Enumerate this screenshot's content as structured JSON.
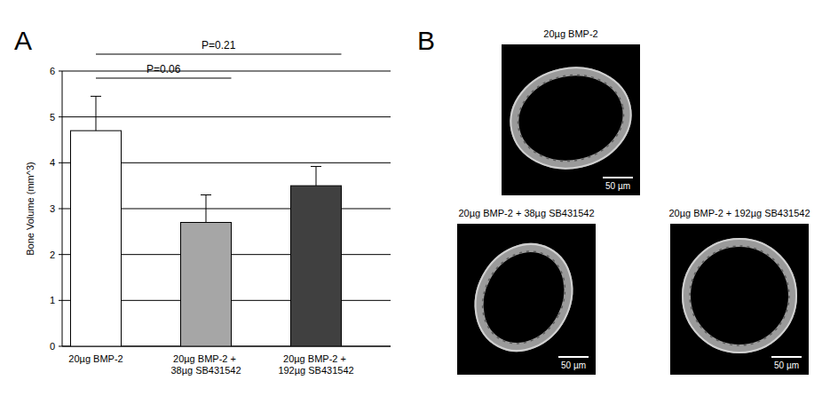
{
  "panel_labels": [
    "A",
    "B"
  ],
  "chart_data": {
    "type": "bar",
    "y_label": "Bone Volume (mm^3)",
    "categories": [
      "20µg BMP-2",
      "20µg BMP-2 + 38µg SB431542",
      "20µg BMP-2 + 192µg SB431542"
    ],
    "values": [
      4.7,
      2.7,
      3.5
    ],
    "errors": [
      0.75,
      0.6,
      0.42
    ],
    "colors": [
      "#ffffff",
      "#a6a6a6",
      "#404040"
    ],
    "ylim": [
      0,
      6
    ],
    "yticks": [
      0,
      1,
      2,
      3,
      4,
      5,
      6
    ],
    "grid": true,
    "annotations": [
      {
        "text": "P=0.06",
        "between": [
          "20µg BMP-2",
          "20µg BMP-2 + 38µg SB431542"
        ]
      },
      {
        "text": "P=0.21",
        "between": [
          "20µg BMP-2",
          "20µg BMP-2 + 192µg SB431542"
        ]
      }
    ]
  },
  "panel_b": {
    "images": [
      {
        "title": "20µg BMP-2",
        "scale_bar": "50 µm"
      },
      {
        "title": "20µg BMP-2 + 38µg SB431542",
        "scale_bar": "50 µm"
      },
      {
        "title": "20µg BMP-2 + 192µg SB431542",
        "scale_bar": "50 µm"
      }
    ]
  }
}
